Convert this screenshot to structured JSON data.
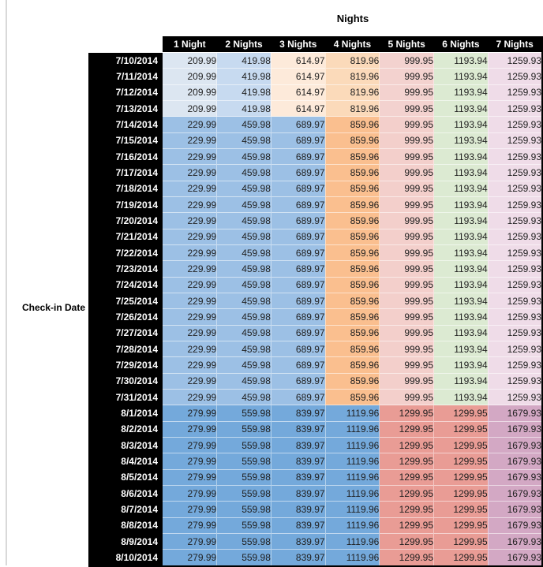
{
  "table": {
    "title": "Nights",
    "row_axis_label": "Check-in Date",
    "columns": [
      "1 Night",
      "2 Nights",
      "3 Nights",
      "4 Nights",
      "5 Nights",
      "6 Nights",
      "7 Nights"
    ],
    "colors": {
      "header_bg": "#000000",
      "header_text": "#ffffff",
      "cell_text": "#1f1f1f",
      "pane_line": "#d9d9d9"
    },
    "groups": {
      "A": {
        "values": [
          "209.99",
          "419.98",
          "614.97",
          "819.96",
          "999.95",
          "1193.94",
          "1259.93"
        ],
        "colors": [
          "#dce6f1",
          "#c7daf0",
          "#fdeada",
          "#fbdaba",
          "#f3d2cf",
          "#dcead2",
          "#efdce8"
        ]
      },
      "B": {
        "values": [
          "229.99",
          "459.98",
          "689.97",
          "859.96",
          "999.95",
          "1193.94",
          "1259.93"
        ],
        "colors": [
          "#9cc0e5",
          "#9cc0e5",
          "#9cc0e5",
          "#fabf8f",
          "#f3cfcb",
          "#dcead2",
          "#efdce8"
        ]
      },
      "C": {
        "values": [
          "279.99",
          "559.98",
          "839.97",
          "1119.96",
          "1299.95",
          "1299.95",
          "1679.93"
        ],
        "colors": [
          "#74a9db",
          "#74a9db",
          "#74a9db",
          "#74a9db",
          "#e99c95",
          "#e99c95",
          "#d3a8c4"
        ]
      }
    },
    "rows": [
      {
        "date": "7/10/2014",
        "group": "A"
      },
      {
        "date": "7/11/2014",
        "group": "A"
      },
      {
        "date": "7/12/2014",
        "group": "A"
      },
      {
        "date": "7/13/2014",
        "group": "A"
      },
      {
        "date": "7/14/2014",
        "group": "B"
      },
      {
        "date": "7/15/2014",
        "group": "B"
      },
      {
        "date": "7/16/2014",
        "group": "B"
      },
      {
        "date": "7/17/2014",
        "group": "B"
      },
      {
        "date": "7/18/2014",
        "group": "B"
      },
      {
        "date": "7/19/2014",
        "group": "B"
      },
      {
        "date": "7/20/2014",
        "group": "B"
      },
      {
        "date": "7/21/2014",
        "group": "B"
      },
      {
        "date": "7/22/2014",
        "group": "B"
      },
      {
        "date": "7/23/2014",
        "group": "B"
      },
      {
        "date": "7/24/2014",
        "group": "B"
      },
      {
        "date": "7/25/2014",
        "group": "B"
      },
      {
        "date": "7/26/2014",
        "group": "B"
      },
      {
        "date": "7/27/2014",
        "group": "B"
      },
      {
        "date": "7/28/2014",
        "group": "B"
      },
      {
        "date": "7/29/2014",
        "group": "B"
      },
      {
        "date": "7/30/2014",
        "group": "B"
      },
      {
        "date": "7/31/2014",
        "group": "B"
      },
      {
        "date": "8/1/2014",
        "group": "C"
      },
      {
        "date": "8/2/2014",
        "group": "C"
      },
      {
        "date": "8/3/2014",
        "group": "C"
      },
      {
        "date": "8/4/2014",
        "group": "C"
      },
      {
        "date": "8/5/2014",
        "group": "C"
      },
      {
        "date": "8/6/2014",
        "group": "C"
      },
      {
        "date": "8/7/2014",
        "group": "C"
      },
      {
        "date": "8/8/2014",
        "group": "C"
      },
      {
        "date": "8/9/2014",
        "group": "C"
      },
      {
        "date": "8/10/2014",
        "group": "C"
      }
    ]
  }
}
